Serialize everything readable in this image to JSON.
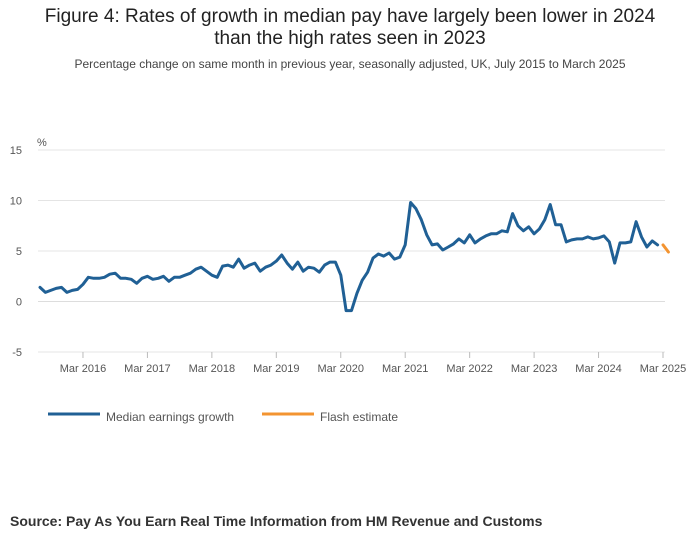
{
  "title_line1": "Figure 4: Rates of growth in median pay have largely been lower in 2024",
  "title_line2": "than the high rates seen in 2023",
  "subtitle": "Percentage change on same month in previous year, seasonally adjusted, UK, July 2015 to March 2025",
  "source": "Source: Pay As You Earn Real Time Information from HM Revenue and Customs",
  "colors": {
    "median": "#206095",
    "flash": "#f39431",
    "grid": "#e4e4e4"
  },
  "chart_data": {
    "type": "line",
    "ylabel": "%",
    "ylim": [
      -5,
      15
    ],
    "yticks": [
      15,
      10,
      5,
      0,
      -5
    ],
    "xtick_labels": [
      "Mar 2016",
      "Mar 2017",
      "Mar 2018",
      "Mar 2019",
      "Mar 2020",
      "Mar 2021",
      "Mar 2022",
      "Mar 2023",
      "Mar 2024",
      "Mar 2025"
    ],
    "x_start": "Jul 2015",
    "x_end": "Mar 2025",
    "legend_position": "bottom",
    "series": [
      {
        "name": "Median earnings growth",
        "values": [
          1.4,
          0.9,
          1.1,
          1.3,
          1.4,
          0.9,
          1.1,
          1.2,
          1.7,
          2.4,
          2.3,
          2.3,
          2.4,
          2.7,
          2.8,
          2.3,
          2.3,
          2.2,
          1.8,
          2.3,
          2.5,
          2.2,
          2.3,
          2.5,
          2.0,
          2.4,
          2.4,
          2.6,
          2.8,
          3.2,
          3.4,
          3.0,
          2.6,
          2.4,
          3.5,
          3.6,
          3.4,
          4.2,
          3.3,
          3.6,
          3.8,
          3.0,
          3.4,
          3.6,
          4.0,
          4.6,
          3.8,
          3.2,
          3.9,
          3.0,
          3.4,
          3.3,
          2.9,
          3.6,
          3.9,
          3.9,
          2.6,
          -0.9,
          -0.9,
          0.8,
          2.1,
          2.9,
          4.3,
          4.7,
          4.5,
          4.8,
          4.2,
          4.4,
          5.6,
          9.8,
          9.2,
          8.1,
          6.6,
          5.6,
          5.7,
          5.1,
          5.4,
          5.7,
          6.2,
          5.8,
          6.6,
          5.8,
          6.2,
          6.5,
          6.7,
          6.7,
          7.0,
          6.9,
          8.7,
          7.5,
          7.0,
          7.4,
          6.7,
          7.2,
          8.1,
          9.6,
          7.6,
          7.6,
          5.9,
          6.1,
          6.2,
          6.2,
          6.4,
          6.2,
          6.3,
          6.5,
          5.9,
          3.8,
          5.8,
          5.8,
          5.9,
          7.9,
          6.4,
          5.4,
          6.0,
          5.6
        ],
        "color": "#206095"
      },
      {
        "name": "Flash estimate",
        "values": [
          5.6,
          4.9
        ],
        "start_index": 116,
        "color": "#f39431"
      }
    ]
  }
}
